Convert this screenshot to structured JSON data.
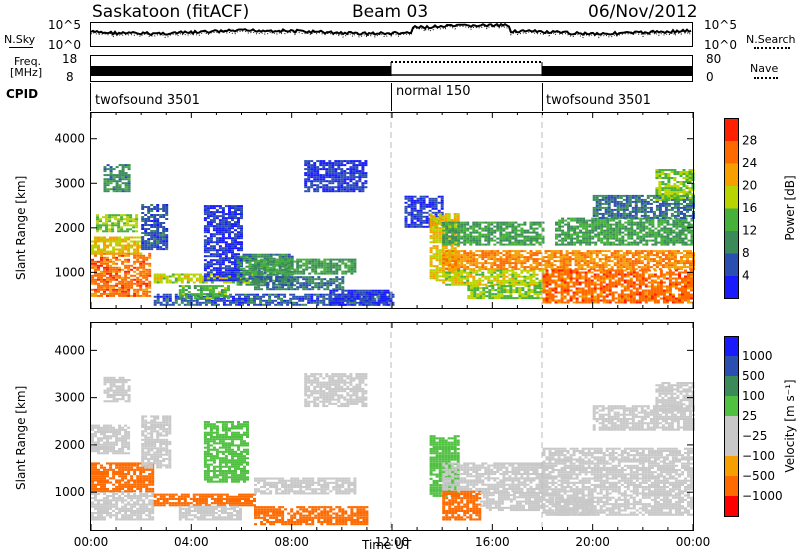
{
  "header": {
    "station": "Saskatoon (fitACF)",
    "beam": "Beam 03",
    "date": "06/Nov/2012"
  },
  "top_panel": {
    "nsky_label": "N.Sky",
    "nsky_ticks": [
      "10^5",
      "10^0"
    ],
    "nsearch_label": "N.Search",
    "nsearch_ticks": [
      "10^5",
      "10^0"
    ]
  },
  "freq_panel": {
    "freq_label": "Freq.",
    "freq_unit": "[MHz]",
    "freq_ticks": [
      "18",
      "8"
    ],
    "nave_label": "Nave",
    "nave_ticks": [
      "80",
      "0"
    ]
  },
  "cpid_panel": {
    "label": "CPID",
    "segments": [
      {
        "name": "twofsound 3501",
        "start": 0,
        "end": 12
      },
      {
        "name": "normal 150",
        "start": 12,
        "end": 18
      },
      {
        "name": "twofsound 3501",
        "start": 18,
        "end": 24
      }
    ]
  },
  "colors": {
    "power_scale": [
      "#1a1aff",
      "#2a4fb0",
      "#3a8a5a",
      "#45b03a",
      "#b8d400",
      "#f5a000",
      "#ff6a00",
      "#ff2000"
    ],
    "velocity_scale": [
      "#ff0000",
      "#ff6a00",
      "#f5a000",
      "#c8c8c8",
      "#c8c8c8",
      "#4fc040",
      "#3a8a5a",
      "#2a4fb0",
      "#1a1aff"
    ],
    "gray": "#c8c8c8"
  },
  "chart_data": [
    {
      "type": "heatmap",
      "name": "power",
      "ylabel": "Slant Range [km]",
      "yticks": [
        "1000",
        "2000",
        "3000",
        "4000"
      ],
      "ylim": [
        200,
        4600
      ],
      "xlim": [
        0,
        24
      ],
      "colorbar_label": "Power [dB]",
      "colorbar_ticks": [
        "4",
        "8",
        "12",
        "16",
        "20",
        "24",
        "28"
      ],
      "blobs": [
        {
          "t0": 0.0,
          "t1": 2.4,
          "r0": 450,
          "r1": 1400,
          "v": 28
        },
        {
          "t0": 0.0,
          "t1": 2.0,
          "r0": 1400,
          "r1": 1800,
          "v": 22
        },
        {
          "t0": 0.2,
          "t1": 1.8,
          "r0": 1900,
          "r1": 2300,
          "v": 18
        },
        {
          "t0": 0.5,
          "t1": 1.5,
          "r0": 2800,
          "r1": 3400,
          "v": 12
        },
        {
          "t0": 2.0,
          "t1": 3.0,
          "r0": 1500,
          "r1": 2500,
          "v": 8
        },
        {
          "t0": 2.5,
          "t1": 7.0,
          "r0": 750,
          "r1": 950,
          "v": 20
        },
        {
          "t0": 2.5,
          "t1": 12.0,
          "r0": 250,
          "r1": 500,
          "v": 8
        },
        {
          "t0": 3.5,
          "t1": 5.5,
          "r0": 400,
          "r1": 700,
          "v": 16
        },
        {
          "t0": 4.5,
          "t1": 6.0,
          "r0": 800,
          "r1": 2500,
          "v": 6
        },
        {
          "t0": 5.8,
          "t1": 8.0,
          "r0": 700,
          "r1": 1400,
          "v": 12
        },
        {
          "t0": 6.5,
          "t1": 10.5,
          "r0": 950,
          "r1": 1300,
          "v": 14
        },
        {
          "t0": 6.5,
          "t1": 10.0,
          "r0": 600,
          "r1": 900,
          "v": 10
        },
        {
          "t0": 8.5,
          "t1": 11.0,
          "r0": 2800,
          "r1": 3500,
          "v": 6
        },
        {
          "t0": 9.5,
          "t1": 12.0,
          "r0": 250,
          "r1": 600,
          "v": 6
        },
        {
          "t0": 12.5,
          "t1": 14.0,
          "r0": 2000,
          "r1": 2700,
          "v": 6
        },
        {
          "t0": 13.5,
          "t1": 14.6,
          "r0": 800,
          "r1": 2300,
          "v": 22
        },
        {
          "t0": 14.0,
          "t1": 18.0,
          "r0": 1600,
          "r1": 2100,
          "v": 14
        },
        {
          "t0": 14.0,
          "t1": 24.0,
          "r0": 1050,
          "r1": 1500,
          "v": 26
        },
        {
          "t0": 14.0,
          "t1": 18.0,
          "r0": 700,
          "r1": 1050,
          "v": 20
        },
        {
          "t0": 15.0,
          "t1": 18.0,
          "r0": 400,
          "r1": 700,
          "v": 18
        },
        {
          "t0": 18.0,
          "t1": 24.0,
          "r0": 300,
          "r1": 1050,
          "v": 28
        },
        {
          "t0": 18.5,
          "t1": 24.0,
          "r0": 1600,
          "r1": 2200,
          "v": 14
        },
        {
          "t0": 20.0,
          "t1": 24.0,
          "r0": 2200,
          "r1": 2700,
          "v": 10
        },
        {
          "t0": 22.5,
          "t1": 24.0,
          "r0": 2600,
          "r1": 3300,
          "v": 18
        }
      ]
    },
    {
      "type": "heatmap",
      "name": "velocity",
      "ylabel": "Slant Range [km]",
      "yticks": [
        "1000",
        "2000",
        "3000",
        "4000"
      ],
      "ylim": [
        200,
        4600
      ],
      "xlim": [
        0,
        24
      ],
      "xlabel": "Time UT",
      "xticks": [
        "00:00",
        "04:00",
        "08:00",
        "12:00",
        "16:00",
        "20:00",
        "00:00"
      ],
      "colorbar_label": "Velocity [m s⁻¹]",
      "colorbar_ticks": [
        "1000",
        "500",
        "100",
        "25",
        "−25",
        "−100",
        "−500",
        "−1000"
      ],
      "blobs": [
        {
          "t0": 0.0,
          "t1": 2.5,
          "r0": 400,
          "r1": 1000,
          "v": 0
        },
        {
          "t0": 0.0,
          "t1": 2.5,
          "r0": 1000,
          "r1": 1600,
          "v": -150
        },
        {
          "t0": 0.0,
          "t1": 1.5,
          "r0": 1800,
          "r1": 2400,
          "v": 0
        },
        {
          "t0": 0.5,
          "t1": 1.5,
          "r0": 2900,
          "r1": 3400,
          "v": 0
        },
        {
          "t0": 2.0,
          "t1": 3.2,
          "r0": 1500,
          "r1": 2600,
          "v": 0
        },
        {
          "t0": 2.5,
          "t1": 6.5,
          "r0": 700,
          "r1": 950,
          "v": -150
        },
        {
          "t0": 3.5,
          "t1": 6.0,
          "r0": 400,
          "r1": 700,
          "v": 60
        },
        {
          "t0": 4.5,
          "t1": 6.2,
          "r0": 1200,
          "r1": 2500,
          "v": 300
        },
        {
          "t0": 6.5,
          "t1": 10.5,
          "r0": 950,
          "r1": 1300,
          "v": 0
        },
        {
          "t0": 6.5,
          "t1": 11.0,
          "r0": 300,
          "r1": 700,
          "v": -150
        },
        {
          "t0": 8.5,
          "t1": 11.0,
          "r0": 2800,
          "r1": 3500,
          "v": 0
        },
        {
          "t0": 13.5,
          "t1": 14.6,
          "r0": 900,
          "r1": 2200,
          "v": 300
        },
        {
          "t0": 14.0,
          "t1": 18.0,
          "r0": 1000,
          "r1": 1600,
          "v": 0
        },
        {
          "t0": 14.0,
          "t1": 15.5,
          "r0": 400,
          "r1": 1000,
          "v": -150
        },
        {
          "t0": 15.5,
          "t1": 18.0,
          "r0": 600,
          "r1": 1000,
          "v": 0
        },
        {
          "t0": 18.0,
          "t1": 24.0,
          "r0": 500,
          "r1": 1900,
          "v": 0
        },
        {
          "t0": 18.5,
          "t1": 20.0,
          "r0": 500,
          "r1": 900,
          "v": 60
        },
        {
          "t0": 20.0,
          "t1": 24.0,
          "r0": 2300,
          "r1": 2800,
          "v": 0
        },
        {
          "t0": 22.5,
          "t1": 24.0,
          "r0": 2700,
          "r1": 3300,
          "v": 0
        }
      ]
    }
  ]
}
